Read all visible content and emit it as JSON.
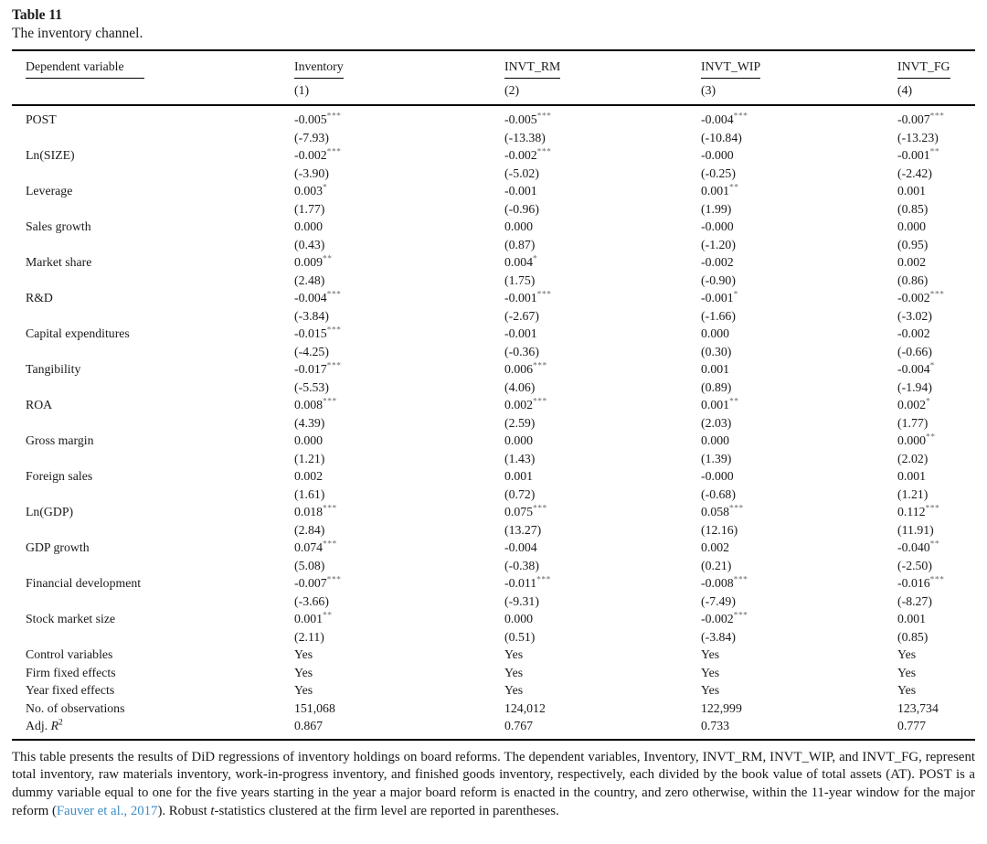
{
  "colors": {
    "text": "#1a1a1a",
    "rule": "#000000",
    "link": "#3d8ec9",
    "star": "#666666"
  },
  "caption": {
    "title": "Table 11",
    "subtitle": "The inventory channel."
  },
  "table": {
    "header": {
      "dependent_variable_label": "Dependent variable",
      "columns": [
        {
          "label": "Inventory",
          "number": "(1)"
        },
        {
          "label": "INVT_RM",
          "number": "(2)"
        },
        {
          "label": "INVT_WIP",
          "number": "(3)"
        },
        {
          "label": "INVT_FG",
          "number": "(4)"
        }
      ]
    },
    "rows": [
      {
        "label": "POST",
        "coefs": [
          "-0.005***",
          "-0.005***",
          "-0.004***",
          "-0.007***"
        ],
        "tstats": [
          "(-7.93)",
          "(-13.38)",
          "(-10.84)",
          "(-13.23)"
        ]
      },
      {
        "label": "Ln(SIZE)",
        "coefs": [
          "-0.002***",
          "-0.002***",
          "-0.000",
          "-0.001**"
        ],
        "tstats": [
          "(-3.90)",
          "(-5.02)",
          "(-0.25)",
          "(-2.42)"
        ]
      },
      {
        "label": "Leverage",
        "coefs": [
          "0.003*",
          "-0.001",
          "0.001**",
          "0.001"
        ],
        "tstats": [
          "(1.77)",
          "(-0.96)",
          "(1.99)",
          "(0.85)"
        ]
      },
      {
        "label": "Sales growth",
        "coefs": [
          "0.000",
          "0.000",
          "-0.000",
          "0.000"
        ],
        "tstats": [
          "(0.43)",
          "(0.87)",
          "(-1.20)",
          "(0.95)"
        ]
      },
      {
        "label": "Market share",
        "coefs": [
          "0.009**",
          "0.004*",
          "-0.002",
          "0.002"
        ],
        "tstats": [
          "(2.48)",
          "(1.75)",
          "(-0.90)",
          "(0.86)"
        ]
      },
      {
        "label": "R&D",
        "coefs": [
          "-0.004***",
          "-0.001***",
          "-0.001*",
          "-0.002***"
        ],
        "tstats": [
          "(-3.84)",
          "(-2.67)",
          "(-1.66)",
          "(-3.02)"
        ]
      },
      {
        "label": "Capital expenditures",
        "coefs": [
          "-0.015***",
          "-0.001",
          "0.000",
          "-0.002"
        ],
        "tstats": [
          "(-4.25)",
          "(-0.36)",
          "(0.30)",
          "(-0.66)"
        ]
      },
      {
        "label": "Tangibility",
        "coefs": [
          "-0.017***",
          "0.006***",
          "0.001",
          "-0.004*"
        ],
        "tstats": [
          "(-5.53)",
          "(4.06)",
          "(0.89)",
          "(-1.94)"
        ]
      },
      {
        "label": "ROA",
        "coefs": [
          "0.008***",
          "0.002***",
          "0.001**",
          "0.002*"
        ],
        "tstats": [
          "(4.39)",
          "(2.59)",
          "(2.03)",
          "(1.77)"
        ]
      },
      {
        "label": "Gross margin",
        "coefs": [
          "0.000",
          "0.000",
          "0.000",
          "0.000**"
        ],
        "tstats": [
          "(1.21)",
          "(1.43)",
          "(1.39)",
          "(2.02)"
        ]
      },
      {
        "label": "Foreign sales",
        "coefs": [
          "0.002",
          "0.001",
          "-0.000",
          "0.001"
        ],
        "tstats": [
          "(1.61)",
          "(0.72)",
          "(-0.68)",
          "(1.21)"
        ]
      },
      {
        "label": "Ln(GDP)",
        "coefs": [
          "0.018***",
          "0.075***",
          "0.058***",
          "0.112***"
        ],
        "tstats": [
          "(2.84)",
          "(13.27)",
          "(12.16)",
          "(11.91)"
        ]
      },
      {
        "label": "GDP growth",
        "coefs": [
          "0.074***",
          "-0.004",
          "0.002",
          "-0.040**"
        ],
        "tstats": [
          "(5.08)",
          "(-0.38)",
          "(0.21)",
          "(-2.50)"
        ]
      },
      {
        "label": "Financial development",
        "coefs": [
          "-0.007***",
          "-0.011***",
          "-0.008***",
          "-0.016***"
        ],
        "tstats": [
          "(-3.66)",
          "(-9.31)",
          "(-7.49)",
          "(-8.27)"
        ]
      },
      {
        "label": "Stock market size",
        "coefs": [
          "0.001**",
          "0.000",
          "-0.002***",
          "0.001"
        ],
        "tstats": [
          "(2.11)",
          "(0.51)",
          "(-3.84)",
          "(0.85)"
        ]
      }
    ],
    "summary_rows": [
      {
        "label": "Control variables",
        "values": [
          "Yes",
          "Yes",
          "Yes",
          "Yes"
        ]
      },
      {
        "label": "Firm fixed effects",
        "values": [
          "Yes",
          "Yes",
          "Yes",
          "Yes"
        ]
      },
      {
        "label": "Year fixed effects",
        "values": [
          "Yes",
          "Yes",
          "Yes",
          "Yes"
        ]
      },
      {
        "label": "No. of observations",
        "values": [
          "151,068",
          "124,012",
          "122,999",
          "123,734"
        ]
      },
      {
        "label": "Adj. R2",
        "label_parts": [
          {
            "text": "Adj. "
          },
          {
            "text": "R",
            "italic": true
          },
          {
            "text": "2",
            "sup": true
          }
        ],
        "values": [
          "0.867",
          "0.767",
          "0.733",
          "0.777"
        ]
      }
    ]
  },
  "footnote": {
    "segments": [
      {
        "text": "This table presents the results of DiD regressions of inventory holdings on board reforms. The dependent variables, Inventory, INVT_RM, INVT_WIP, and INVT_FG, represent total inventory, raw materials inventory, work-in-progress inventory, and finished goods inventory, respectively, each divided by the book value of total assets (AT). POST is a dummy variable equal to one for the five years starting in the year a major board reform is enacted in the country, and zero otherwise, within the 11-year window for the major reform (",
        "style": "normal"
      },
      {
        "text": "Fauver et al., 2017",
        "style": "link"
      },
      {
        "text": "). Robust ",
        "style": "normal"
      },
      {
        "text": "t",
        "style": "italic"
      },
      {
        "text": "-statistics clustered at the firm level are reported in parentheses.",
        "style": "normal"
      }
    ]
  }
}
